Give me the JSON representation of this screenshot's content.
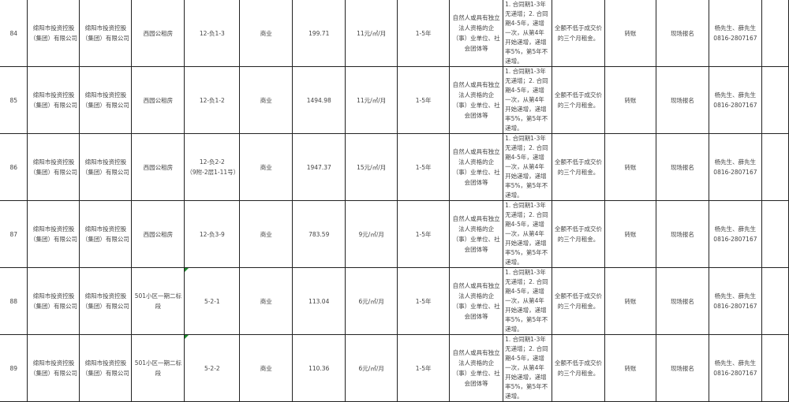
{
  "colors": {
    "grid": "#222222",
    "text": "#444444",
    "comment_marker": "#1a8a2a"
  },
  "rows": [
    {
      "no": "84",
      "owner1": "绵阳市投资控股（集团）有限公司",
      "owner2": "绵阳市投资控股（集团）有限公司",
      "project": "西园公租房",
      "unit": "12-负1-3",
      "unit2": "",
      "use": "商业",
      "area": "199.71",
      "price": "11元/㎡/月",
      "term": "1-5年",
      "eligibility": "自然人或具有独立法人资格的企（事）业单位、社会团体等",
      "terms": "1. 合同期1-3年无递增；2. 合同期4-5年，递增一次，从第4年开始递增，递增率5%，第5年不递增。",
      "deposit": "全额不低于成交价的三个月租金。",
      "method": "转账",
      "signup": "现场报名",
      "contact": "杨先生、薛先生 0816-2807167",
      "marker": false
    },
    {
      "no": "85",
      "owner1": "绵阳市投资控股（集团）有限公司",
      "owner2": "绵阳市投资控股（集团）有限公司",
      "project": "西园公租房",
      "unit": "12-负1-2",
      "unit2": "",
      "use": "商业",
      "area": "1494.98",
      "price": "11元/㎡/月",
      "term": "1-5年",
      "eligibility": "自然人或具有独立法人资格的企（事）业单位、社会团体等",
      "terms": "1. 合同期1-3年无递增；2. 合同期4-5年，递增一次，从第4年开始递增，递增率5%，第5年不递增。",
      "deposit": "全额不低于成交价的三个月租金。",
      "method": "转账",
      "signup": "现场报名",
      "contact": "杨先生、薛先生 0816-2807167",
      "marker": false
    },
    {
      "no": "86",
      "owner1": "绵阳市投资控股（集团）有限公司",
      "owner2": "绵阳市投资控股（集团）有限公司",
      "project": "西园公租房",
      "unit": "12-负2-2",
      "unit2": "（9附-2层1-11号）",
      "use": "商业",
      "area": "1947.37",
      "price": "15元/㎡/月",
      "term": "1-5年",
      "eligibility": "自然人或具有独立法人资格的企（事）业单位、社会团体等",
      "terms": "1. 合同期1-3年无递增；2. 合同期4-5年，递增一次，从第4年开始递增，递增率5%，第5年不递增。",
      "deposit": "全额不低于成交价的三个月租金。",
      "method": "转账",
      "signup": "现场报名",
      "contact": "杨先生、薛先生 0816-2807167",
      "marker": false
    },
    {
      "no": "87",
      "owner1": "绵阳市投资控股（集团）有限公司",
      "owner2": "绵阳市投资控股（集团）有限公司",
      "project": "西园公租房",
      "unit": "12-负3-9",
      "unit2": "",
      "use": "商业",
      "area": "783.59",
      "price": "9元/㎡/月",
      "term": "1-5年",
      "eligibility": "自然人或具有独立法人资格的企（事）业单位、社会团体等",
      "terms": "1. 合同期1-3年无递增；2. 合同期4-5年，递增一次，从第4年开始递增，递增率5%，第5年不递增。",
      "deposit": "全额不低于成交价的三个月租金。",
      "method": "转账",
      "signup": "现场报名",
      "contact": "杨先生、薛先生 0816-2807167",
      "marker": false
    },
    {
      "no": "88",
      "owner1": "绵阳市投资控股（集团）有限公司",
      "owner2": "绵阳市投资控股（集团）有限公司",
      "project": "501小区一期二标段",
      "unit": "5-2-1",
      "unit2": "",
      "use": "商业",
      "area": "113.04",
      "price": "6元/㎡/月",
      "term": "1-5年",
      "eligibility": "自然人或具有独立法人资格的企（事）业单位、社会团体等",
      "terms": "1. 合同期1-3年无递增；2. 合同期4-5年，递增一次，从第4年开始递增，递增率5%，第5年不递增。",
      "deposit": "全额不低于成交价的三个月租金。",
      "method": "转账",
      "signup": "现场报名",
      "contact": "杨先生、薛先生 0816-2807167",
      "marker": true
    },
    {
      "no": "89",
      "owner1": "绵阳市投资控股（集团）有限公司",
      "owner2": "绵阳市投资控股（集团）有限公司",
      "project": "501小区一期二标段",
      "unit": "5-2-2",
      "unit2": "",
      "use": "商业",
      "area": "110.36",
      "price": "6元/㎡/月",
      "term": "1-5年",
      "eligibility": "自然人或具有独立法人资格的企（事）业单位、社会团体等",
      "terms": "1. 合同期1-3年无递增；2. 合同期4-5年，递增一次，从第4年开始递增，递增率5%，第5年不递增。",
      "deposit": "全额不低于成交价的三个月租金。",
      "method": "转账",
      "signup": "现场报名",
      "contact": "杨先生、薛先生 0816-2807167",
      "marker": true
    }
  ]
}
